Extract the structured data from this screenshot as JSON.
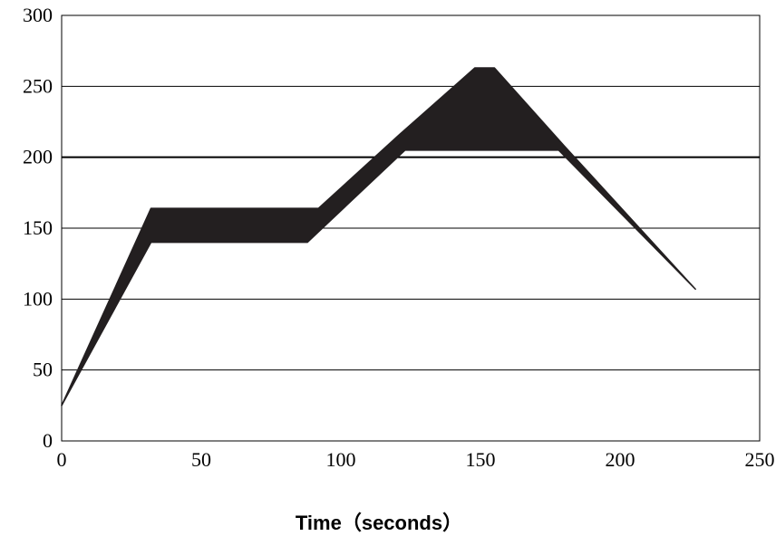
{
  "chart_data": {
    "type": "area",
    "title": "",
    "xlabel": "Time（seconds）",
    "ylabel": "",
    "xlim": [
      0,
      250
    ],
    "ylim": [
      0,
      300
    ],
    "xticks": [
      0,
      50,
      100,
      150,
      200,
      250
    ],
    "yticks": [
      0,
      50,
      100,
      150,
      200,
      250,
      300
    ],
    "grid": true,
    "fill_color": "#231f20",
    "reference_line": 200,
    "series": [
      {
        "upper": [
          [
            0,
            25
          ],
          [
            32,
            164
          ],
          [
            92,
            164
          ],
          [
            121,
            216
          ],
          [
            148,
            263
          ],
          [
            155,
            263
          ],
          [
            180,
            208
          ],
          [
            227,
            107
          ]
        ],
        "lower": [
          [
            0,
            25
          ],
          [
            32,
            140
          ],
          [
            88,
            140
          ],
          [
            123,
            205
          ],
          [
            178,
            205
          ],
          [
            227,
            107
          ]
        ]
      }
    ]
  }
}
